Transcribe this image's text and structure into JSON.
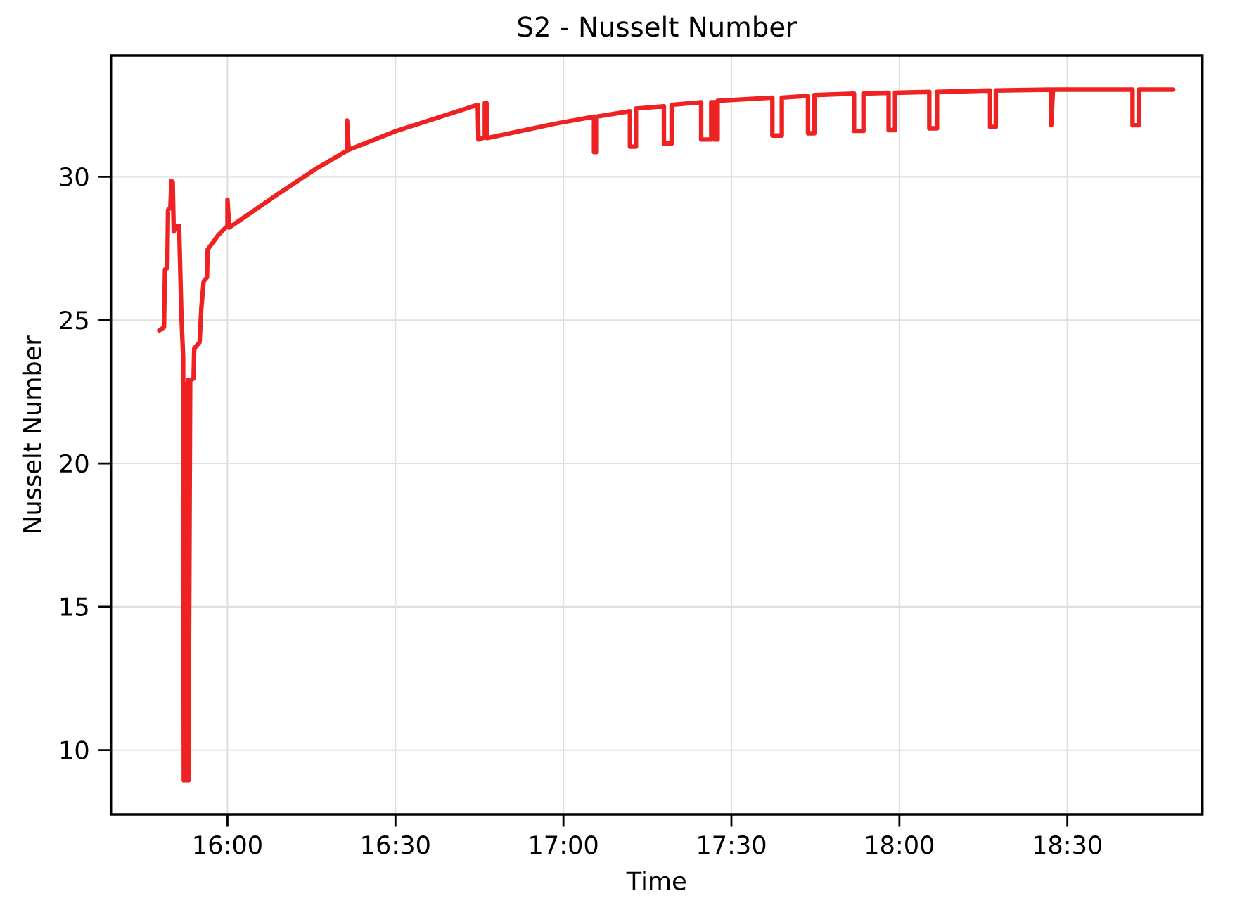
{
  "chart_data": {
    "type": "line",
    "title": "S2 - Nusselt Number",
    "xlabel": "Time",
    "ylabel": "Nusselt Number",
    "xlim": [
      15.653,
      18.902
    ],
    "ylim": [
      7.76,
      34.23
    ],
    "xticks": [
      {
        "value": 16,
        "label": "16:00"
      },
      {
        "value": 16.5,
        "label": "16:30"
      },
      {
        "value": 17,
        "label": "17:00"
      },
      {
        "value": 17.5,
        "label": "17:30"
      },
      {
        "value": 18,
        "label": "18:00"
      },
      {
        "value": 18.5,
        "label": "18:30"
      }
    ],
    "yticks": [
      10,
      15,
      20,
      25,
      30
    ],
    "grid": true,
    "marker": "none",
    "line_style": "solid",
    "series": [
      {
        "color": "#ee2222",
        "x": [
          15.797,
          15.811,
          15.814,
          15.821,
          15.823,
          15.83,
          15.833,
          15.837,
          15.84,
          15.847,
          15.856,
          15.863,
          15.868,
          15.87,
          15.875,
          15.877,
          15.882,
          15.884,
          15.889,
          15.899,
          15.901,
          15.917,
          15.922,
          15.929,
          15.939,
          15.941,
          15.972,
          16.0,
          16.0,
          16.005,
          16.149,
          16.266,
          16.356,
          16.356,
          16.361,
          16.502,
          16.62,
          16.745,
          16.747,
          16.766,
          16.766,
          16.771,
          16.773,
          16.974,
          17.091,
          17.091,
          17.099,
          17.099,
          17.198,
          17.198,
          17.216,
          17.216,
          17.299,
          17.299,
          17.322,
          17.322,
          17.41,
          17.41,
          17.44,
          17.44,
          17.45,
          17.45,
          17.459,
          17.459,
          17.622,
          17.622,
          17.65,
          17.65,
          17.728,
          17.728,
          17.747,
          17.747,
          17.865,
          17.865,
          17.893,
          17.893,
          17.968,
          17.968,
          17.987,
          17.987,
          18.089,
          18.089,
          18.112,
          18.112,
          18.27,
          18.27,
          18.287,
          18.287,
          18.452,
          18.452,
          18.457,
          18.694,
          18.694,
          18.713,
          18.713,
          18.815
        ],
        "values": [
          24.64,
          24.75,
          26.77,
          26.82,
          28.84,
          28.92,
          29.86,
          29.81,
          28.09,
          28.29,
          28.29,
          25.11,
          23.73,
          8.95,
          22.76,
          8.95,
          22.9,
          8.95,
          22.9,
          22.96,
          24.01,
          24.23,
          25.39,
          26.35,
          26.49,
          27.46,
          27.96,
          28.29,
          29.2,
          28.23,
          29.39,
          30.3,
          30.91,
          31.96,
          30.94,
          31.6,
          32.04,
          32.51,
          31.3,
          31.38,
          32.57,
          32.57,
          31.35,
          31.85,
          32.1,
          30.86,
          30.86,
          32.1,
          32.29,
          31.05,
          31.05,
          32.38,
          32.46,
          31.16,
          31.16,
          32.51,
          32.6,
          31.3,
          31.3,
          32.6,
          32.6,
          31.3,
          31.3,
          32.65,
          32.76,
          31.44,
          31.44,
          32.76,
          32.82,
          31.52,
          31.52,
          32.85,
          32.9,
          31.6,
          31.6,
          32.9,
          32.93,
          31.63,
          31.63,
          32.93,
          32.96,
          31.69,
          31.69,
          32.96,
          33.01,
          31.74,
          31.74,
          33.01,
          33.04,
          31.8,
          33.04,
          33.04,
          31.8,
          31.8,
          33.04,
          33.04
        ]
      }
    ]
  }
}
